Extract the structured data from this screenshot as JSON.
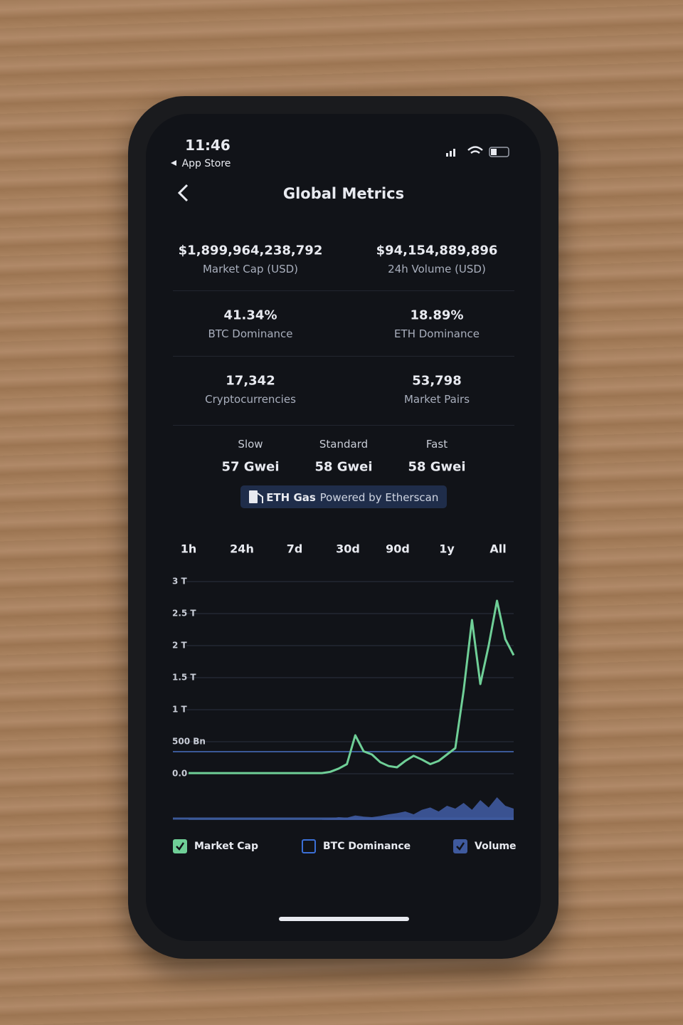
{
  "status_bar": {
    "time": "11:46",
    "back_app": "App Store"
  },
  "header": {
    "title": "Global Metrics"
  },
  "metrics": [
    {
      "value": "$1,899,964,238,792",
      "label": "Market Cap (USD)"
    },
    {
      "value": "$94,154,889,896",
      "label": "24h Volume (USD)"
    },
    {
      "value": "41.34%",
      "label": "BTC Dominance"
    },
    {
      "value": "18.89%",
      "label": "ETH Dominance"
    },
    {
      "value": "17,342",
      "label": "Cryptocurrencies"
    },
    {
      "value": "53,798",
      "label": "Market Pairs"
    }
  ],
  "gas": {
    "tiers": [
      {
        "name": "Slow",
        "value": "57 Gwei"
      },
      {
        "name": "Standard",
        "value": "58 Gwei"
      },
      {
        "name": "Fast",
        "value": "58 Gwei"
      }
    ],
    "badge": {
      "label": "ETH Gas",
      "source": "Powered by Etherscan"
    }
  },
  "tabs": [
    "1h",
    "24h",
    "7d",
    "30d",
    "90d",
    "1y",
    "All"
  ],
  "chart_data": {
    "type": "line",
    "ylim": [
      0,
      3
    ],
    "yticks": [
      {
        "value": 3,
        "label": "3 T"
      },
      {
        "value": 2.5,
        "label": "2.5 T"
      },
      {
        "value": 2,
        "label": "2 T"
      },
      {
        "value": 1.5,
        "label": "1.5 T"
      },
      {
        "value": 1,
        "label": "1 T"
      },
      {
        "value": 0.5,
        "label": "500 Bn"
      },
      {
        "value": 0,
        "label": "0.0"
      }
    ],
    "y2lim": [
      0,
      0.5
    ],
    "grid": true,
    "series": [
      {
        "name": "Market Cap",
        "color": "#6fcf97",
        "checked": true,
        "values": [
          0.01,
          0.01,
          0.01,
          0.01,
          0.01,
          0.01,
          0.01,
          0.01,
          0.01,
          0.01,
          0.01,
          0.01,
          0.01,
          0.01,
          0.01,
          0.01,
          0.01,
          0.03,
          0.08,
          0.15,
          0.6,
          0.35,
          0.3,
          0.18,
          0.12,
          0.1,
          0.2,
          0.28,
          0.22,
          0.15,
          0.2,
          0.3,
          0.4,
          1.3,
          2.4,
          1.4,
          2.0,
          2.7,
          2.1,
          1.85
        ]
      },
      {
        "name": "BTC Dominance",
        "color": "#3b6fd6",
        "checked": false
      },
      {
        "name": "Volume",
        "color": "#3f5a9e",
        "checked": true,
        "axis": "y2",
        "values": [
          0.005,
          0.005,
          0.005,
          0.005,
          0.005,
          0.005,
          0.005,
          0.005,
          0.005,
          0.005,
          0.005,
          0.005,
          0.005,
          0.005,
          0.005,
          0.005,
          0.005,
          0.03,
          0.05,
          0.04,
          0.08,
          0.06,
          0.05,
          0.07,
          0.1,
          0.12,
          0.15,
          0.1,
          0.18,
          0.22,
          0.15,
          0.25,
          0.2,
          0.3,
          0.18,
          0.35,
          0.22,
          0.4,
          0.25,
          0.2
        ]
      }
    ]
  }
}
